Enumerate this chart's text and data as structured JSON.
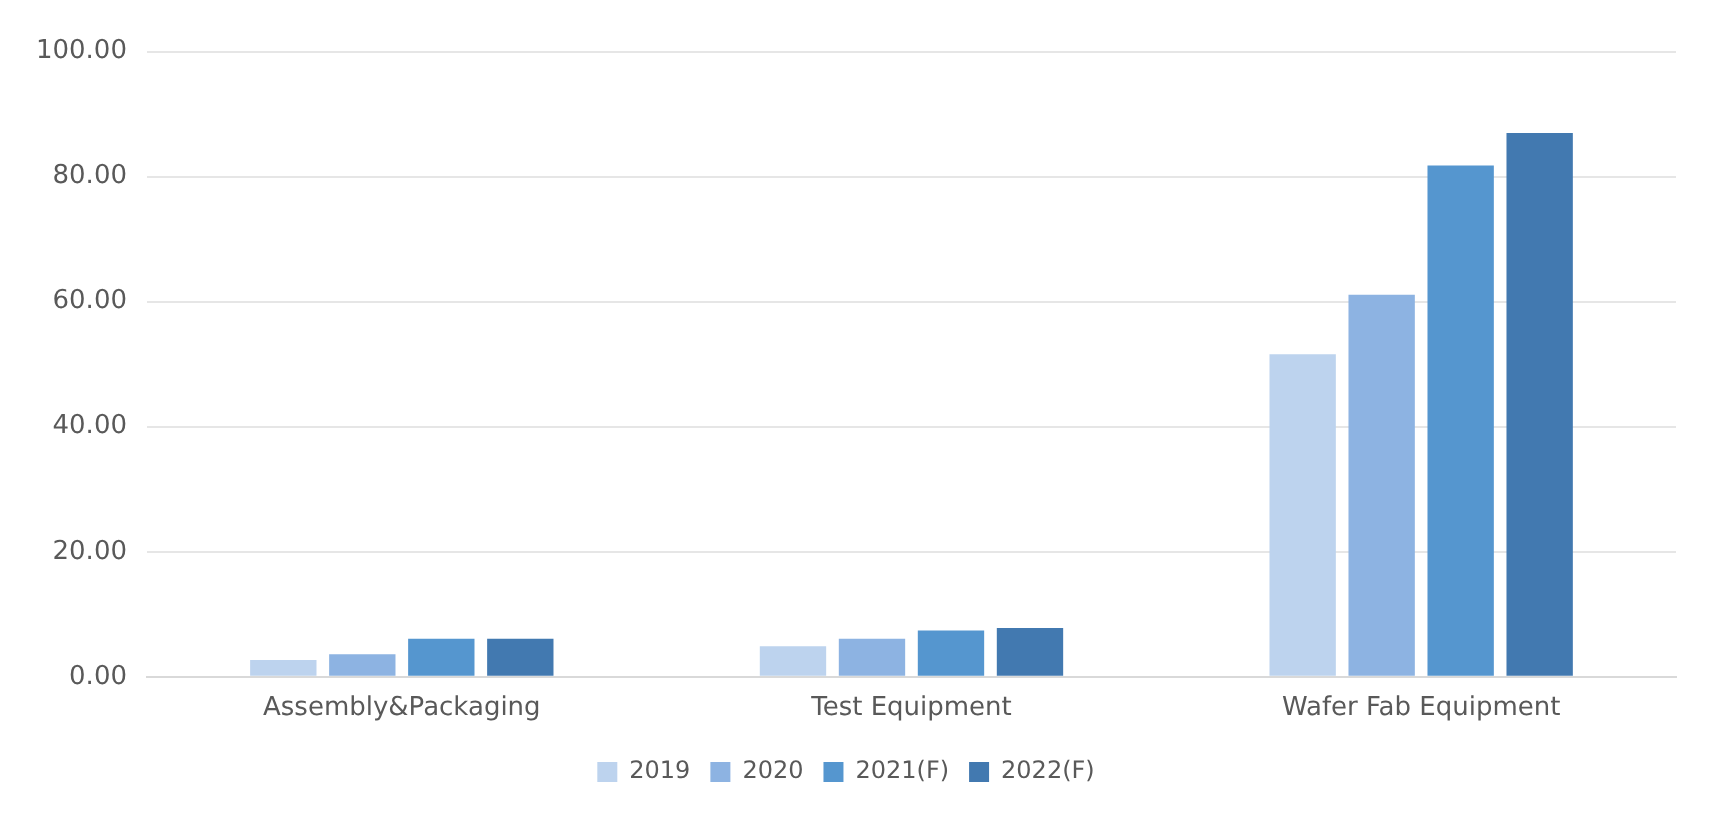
{
  "chart_data": {
    "type": "bar",
    "categories": [
      "Assembly&Packaging",
      "Test Equipment",
      "Wafer Fab Equipment"
    ],
    "series": [
      {
        "name": "2019",
        "color": "#bdd3ee",
        "values": [
          2.7,
          4.9,
          51.6
        ]
      },
      {
        "name": "2020",
        "color": "#8db3e2",
        "values": [
          3.6,
          6.1,
          61.1
        ]
      },
      {
        "name": "2021(F)",
        "color": "#5596cf",
        "values": [
          6.1,
          7.4,
          81.8
        ]
      },
      {
        "name": "2022(F)",
        "color": "#4279b0",
        "values": [
          6.1,
          7.8,
          87.0
        ]
      }
    ],
    "ylim": [
      0,
      100
    ],
    "yticks": [
      {
        "value": 0,
        "label": "0.00"
      },
      {
        "value": 20,
        "label": "20.00"
      },
      {
        "value": 40,
        "label": "40.00"
      },
      {
        "value": 60,
        "label": "60.00"
      },
      {
        "value": 80,
        "label": "80.00"
      },
      {
        "value": 100,
        "label": "100.00"
      }
    ],
    "grid": "y",
    "legend": "bottom"
  }
}
